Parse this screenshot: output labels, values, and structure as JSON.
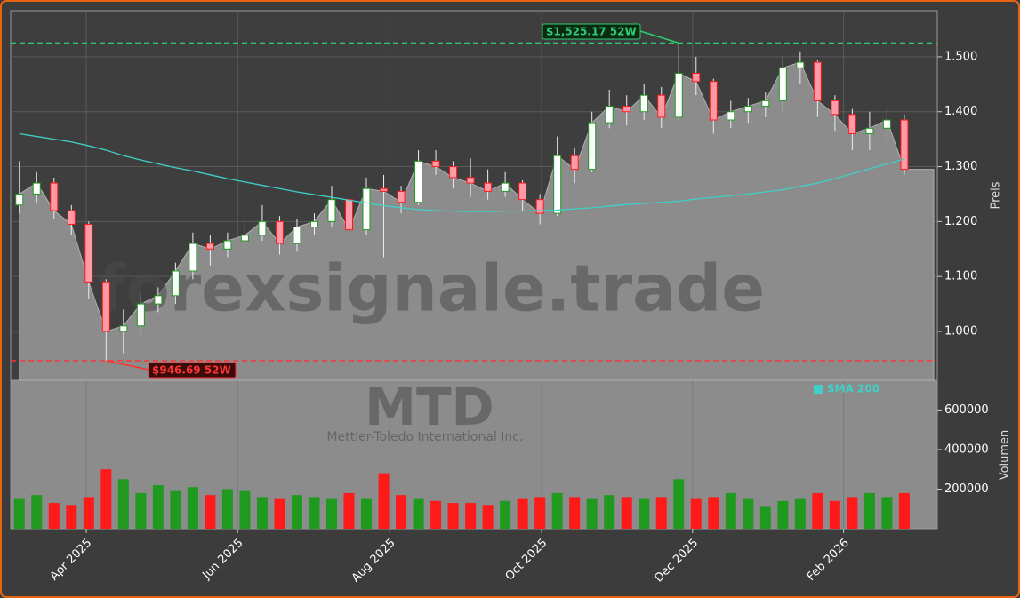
{
  "chart_data": {
    "type": "candlestick",
    "watermark": "forexsignale.trade",
    "symbol": "MTD",
    "company": "Mettler-Toledo International Inc.",
    "ylabel": "Preis",
    "y2label": "Volumen",
    "xlim": [
      0,
      53.4
    ],
    "xticks": [
      {
        "value": 4.36,
        "label": "Apr 2025"
      },
      {
        "value": 13.08,
        "label": "Jun 2025"
      },
      {
        "value": 21.85,
        "label": "Aug 2025"
      },
      {
        "value": 30.6,
        "label": "Oct 2025"
      },
      {
        "value": 39.3,
        "label": "Dec 2025"
      },
      {
        "value": 48.0,
        "label": "Feb 2026"
      }
    ],
    "ylim": [
      911,
      1584
    ],
    "yticks": [
      {
        "value": 1000,
        "label": "1.000"
      },
      {
        "value": 1100,
        "label": "1.100"
      },
      {
        "value": 1200,
        "label": "1.200"
      },
      {
        "value": 1300,
        "label": "1.300"
      },
      {
        "value": 1400,
        "label": "1.400"
      },
      {
        "value": 1500,
        "label": "1.500"
      }
    ],
    "grid": true,
    "up_color": "#1f9a1f",
    "down_color": "#ff1a1a",
    "area_color": "#8c8c8c",
    "open": [
      1230,
      1250,
      1270,
      1220,
      1195,
      1090,
      1000,
      1010,
      1050,
      1065,
      1110,
      1160,
      1150,
      1165,
      1175,
      1200,
      1160,
      1190,
      1200,
      1240,
      1185,
      1260,
      1255,
      1235,
      1310,
      1300,
      1280,
      1270,
      1255,
      1270,
      1240,
      1215,
      1320,
      1295,
      1380,
      1410,
      1400,
      1430,
      1390,
      1470,
      1455,
      1385,
      1400,
      1410,
      1420,
      1480,
      1490,
      1420,
      1395,
      1360,
      1370,
      1385
    ],
    "high": [
      1310,
      1290,
      1280,
      1230,
      1200,
      1095,
      1040,
      1070,
      1080,
      1125,
      1180,
      1175,
      1180,
      1200,
      1230,
      1210,
      1205,
      1215,
      1265,
      1245,
      1280,
      1285,
      1265,
      1330,
      1330,
      1310,
      1315,
      1295,
      1290,
      1275,
      1250,
      1355,
      1335,
      1400,
      1440,
      1430,
      1450,
      1445,
      1525.17,
      1500,
      1460,
      1420,
      1425,
      1435,
      1500,
      1510,
      1495,
      1430,
      1405,
      1400,
      1410,
      1395
    ],
    "low": [
      1215,
      1235,
      1205,
      1175,
      1060,
      946.69,
      960,
      995,
      1035,
      1050,
      1095,
      1120,
      1135,
      1145,
      1165,
      1140,
      1145,
      1175,
      1190,
      1165,
      1175,
      1135,
      1215,
      1230,
      1285,
      1260,
      1245,
      1240,
      1245,
      1220,
      1195,
      1210,
      1270,
      1290,
      1370,
      1375,
      1385,
      1370,
      1385,
      1430,
      1360,
      1370,
      1380,
      1390,
      1400,
      1450,
      1390,
      1365,
      1330,
      1330,
      1345,
      1285
    ],
    "close": [
      1250,
      1270,
      1220,
      1195,
      1090,
      1000,
      1010,
      1050,
      1065,
      1110,
      1160,
      1150,
      1165,
      1175,
      1200,
      1160,
      1190,
      1200,
      1240,
      1185,
      1260,
      1255,
      1235,
      1310,
      1300,
      1280,
      1270,
      1255,
      1270,
      1240,
      1215,
      1320,
      1295,
      1380,
      1410,
      1400,
      1430,
      1390,
      1470,
      1455,
      1385,
      1400,
      1410,
      1420,
      1480,
      1490,
      1420,
      1395,
      1360,
      1370,
      1385,
      1295
    ],
    "sma": {
      "name": "SMA 200",
      "color": "#40d0c8",
      "values": [
        1360,
        1355,
        1350,
        1345,
        1338,
        1330,
        1320,
        1312,
        1305,
        1298,
        1292,
        1285,
        1278,
        1272,
        1266,
        1260,
        1254,
        1249,
        1244,
        1239,
        1234,
        1229,
        1225,
        1222,
        1220,
        1219,
        1218,
        1218,
        1219,
        1219,
        1220,
        1221,
        1223,
        1225,
        1228,
        1231,
        1233,
        1235,
        1237,
        1241,
        1244,
        1247,
        1250,
        1254,
        1258,
        1264,
        1270,
        1278,
        1287,
        1296,
        1305,
        1314
      ]
    },
    "volume": {
      "ylim": [
        0,
        750000
      ],
      "yticks": [
        200000,
        400000,
        600000
      ],
      "values": [
        150000,
        170000,
        130000,
        120000,
        160000,
        300000,
        250000,
        180000,
        220000,
        190000,
        210000,
        170000,
        200000,
        190000,
        160000,
        150000,
        170000,
        160000,
        150000,
        180000,
        150000,
        280000,
        170000,
        150000,
        140000,
        130000,
        130000,
        120000,
        140000,
        150000,
        160000,
        180000,
        160000,
        150000,
        170000,
        160000,
        150000,
        160000,
        250000,
        150000,
        160000,
        180000,
        150000,
        110000,
        140000,
        150000,
        180000,
        140000,
        160000,
        180000,
        160000,
        180000
      ]
    },
    "annotations": [
      {
        "value": 1525.17,
        "label": "$1,525.17 52W",
        "color": "#2ecc71"
      },
      {
        "value": 946.69,
        "label": "$946.69 52W",
        "color": "#ff3333"
      }
    ]
  }
}
